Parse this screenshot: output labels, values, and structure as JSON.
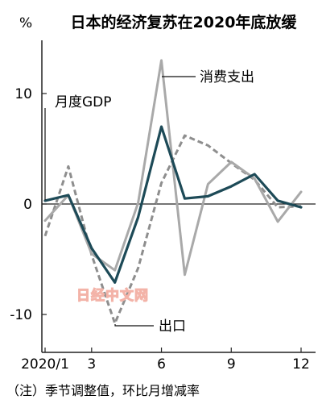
{
  "chart_data": {
    "type": "line",
    "title": "日本的经济复苏在2020年底放缓",
    "unit_label": "%",
    "x": [
      1,
      2,
      3,
      4,
      5,
      6,
      7,
      8,
      9,
      10,
      11,
      12
    ],
    "x_tick_values": [
      1,
      3,
      6,
      9,
      12
    ],
    "x_tick_labels": [
      "2020/1",
      "3",
      "6",
      "9",
      "12"
    ],
    "y_tick_values": [
      10,
      0,
      -10
    ],
    "y_tick_labels": [
      "10",
      "0",
      "-10"
    ],
    "ylim": [
      -13,
      15
    ],
    "grid": false,
    "series": [
      {
        "name": "月度GDP",
        "color": "#1d4a57",
        "style": "solid",
        "values": [
          0.3,
          0.8,
          -4.0,
          -7.1,
          -1.2,
          7.0,
          0.5,
          0.7,
          1.6,
          2.7,
          0.3,
          -0.3
        ]
      },
      {
        "name": "消费支出",
        "color": "#a9a9a9",
        "style": "solid",
        "values": [
          -1.5,
          0.8,
          -4.5,
          -6.0,
          0.1,
          13.0,
          -6.4,
          1.8,
          3.8,
          2.3,
          -1.6,
          1.1
        ]
      },
      {
        "name": "出口",
        "color": "#8e8e8e",
        "style": "dashed",
        "values": [
          -2.9,
          3.4,
          -4.6,
          -10.8,
          -5.8,
          1.9,
          6.2,
          5.3,
          3.7,
          2.2,
          -0.3,
          -0.2
        ]
      }
    ],
    "annotations": {
      "gdp": "月度GDP",
      "consumption": "消费支出",
      "exports": "出口"
    },
    "note": "（注）季节调整值，环比月增减率"
  },
  "watermark": "日经中文网"
}
